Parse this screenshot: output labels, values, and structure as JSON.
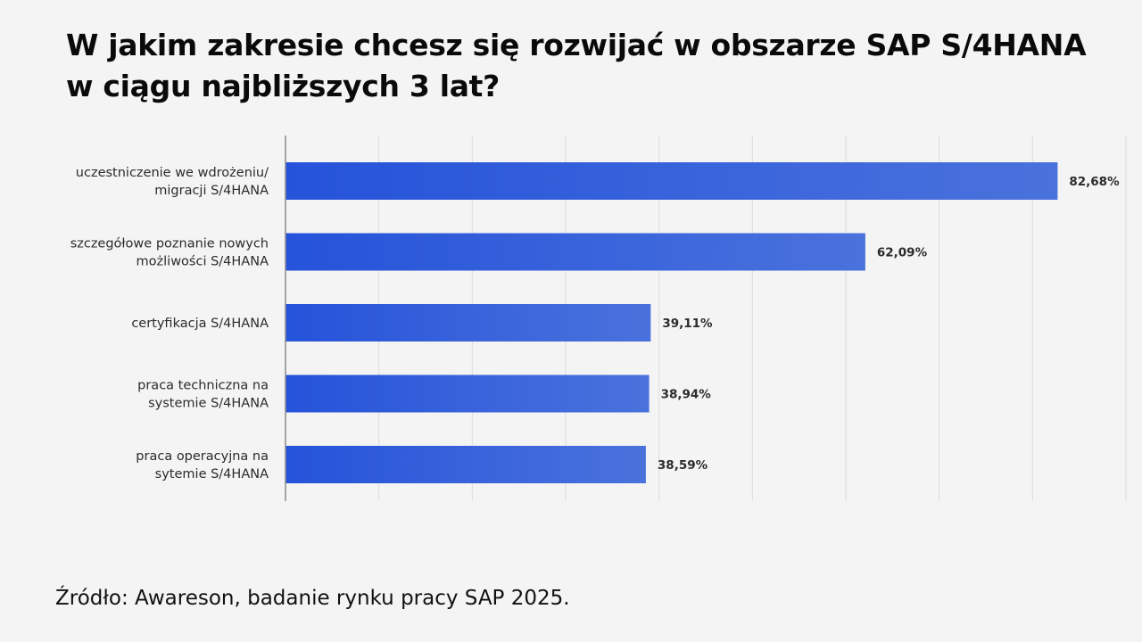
{
  "chart_data": {
    "type": "bar",
    "orientation": "horizontal",
    "title_lines": [
      "W jakim zakresie chcesz się rozwijać w obszarze SAP S/4HANA",
      "w ciągu najbliższych 3 lat?"
    ],
    "categories": [
      [
        "uczestniczenie we wdrożeniu/",
        "migracji S/4HANA"
      ],
      [
        "szczegółowe poznanie nowych",
        "możliwości S/4HANA"
      ],
      [
        "certyfikacja S/4HANA"
      ],
      [
        "praca techniczna na",
        "systemie S/4HANA"
      ],
      [
        "praca operacyjna na",
        "sytemie S/4HANA"
      ]
    ],
    "values": [
      82.68,
      62.09,
      39.11,
      38.94,
      38.59
    ],
    "value_labels": [
      "82,68%",
      "62,09%",
      "39,11%",
      "38,94%",
      "38,59%"
    ],
    "xlim": [
      0,
      90
    ],
    "grid": true,
    "legend": "none",
    "bar_color_start": "#2553da",
    "bar_color_end": "#4a72dc"
  },
  "footer": {
    "source": "Źródło: Awareson, badanie rynku pracy SAP 2025."
  }
}
